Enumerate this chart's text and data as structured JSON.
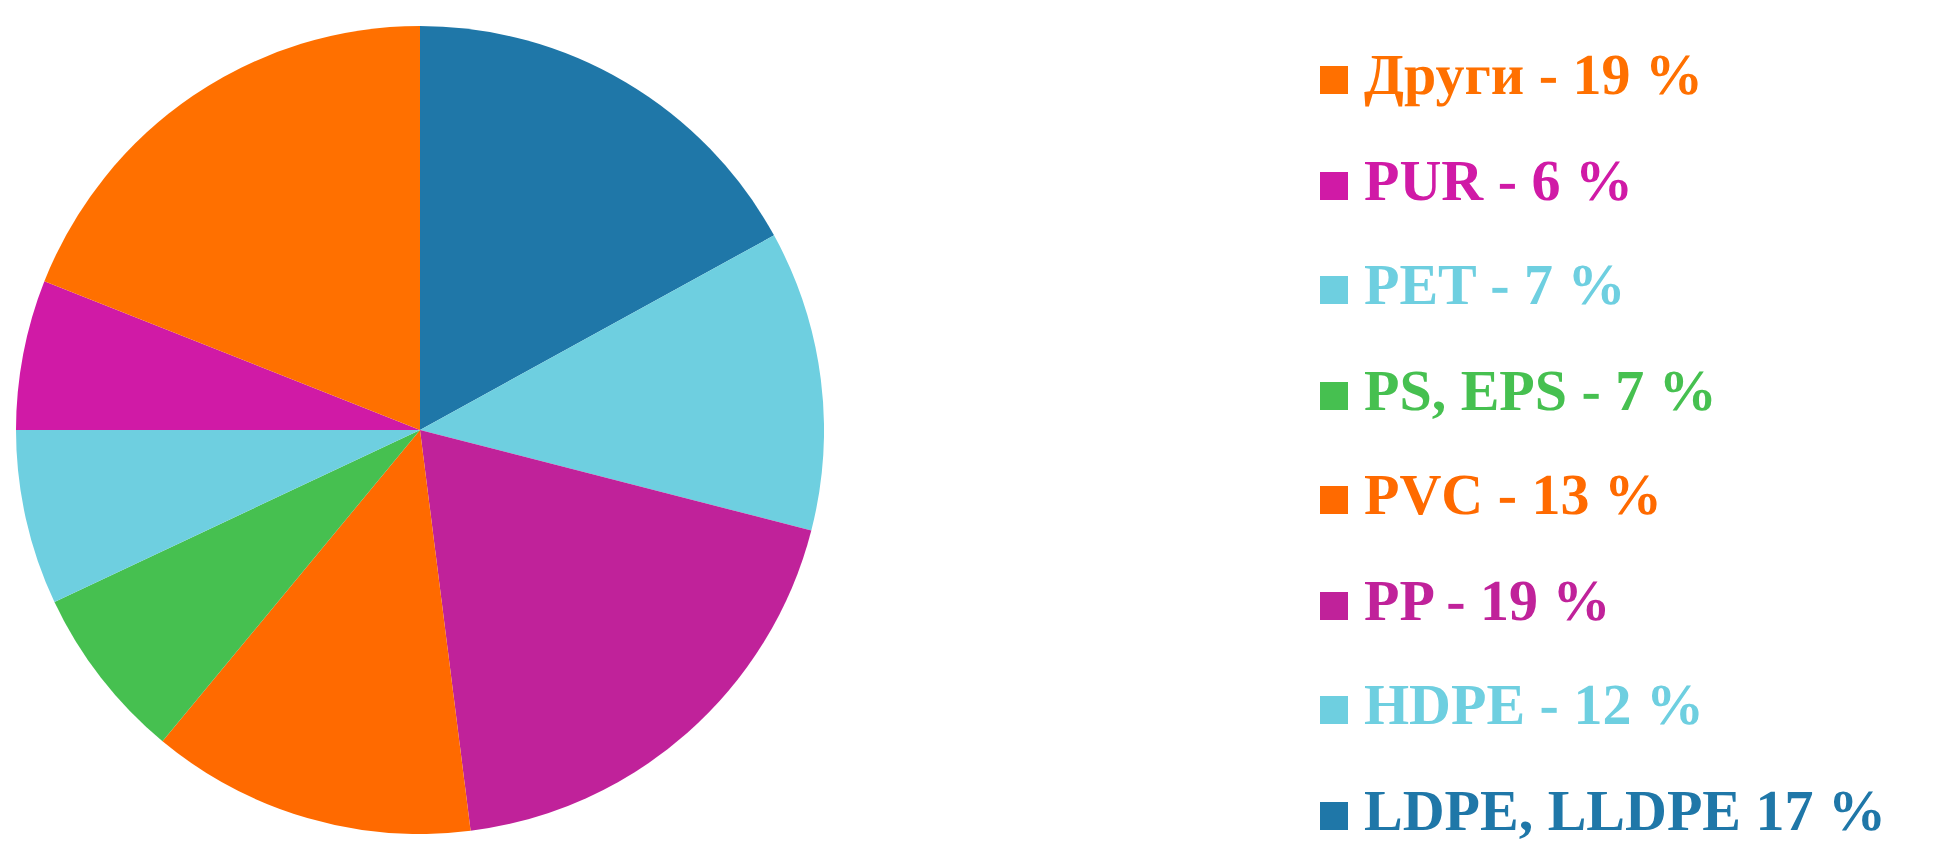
{
  "chart_data": {
    "type": "pie",
    "categories": [
      "LDPE, LLDPE 17 %",
      "HDPE - 12 %",
      "PP - 19 %",
      "PVC - 13 %",
      "PS, EPS - 7 %",
      "PET - 7 %",
      "PUR - 6 %",
      "Други - 19 %"
    ],
    "values": [
      17,
      12,
      19,
      13,
      7,
      7,
      6,
      19
    ],
    "colors": [
      "#1f77a8",
      "#6ecfe0",
      "#c0229a",
      "#ff6a00",
      "#46c050",
      "#6ecfe0",
      "#d01aa6",
      "#ff7000"
    ],
    "legend": "right"
  }
}
